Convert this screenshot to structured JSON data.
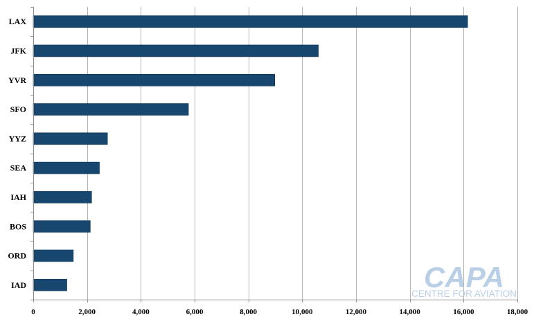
{
  "chart_data": {
    "type": "bar",
    "orientation": "horizontal",
    "title": "",
    "xlabel": "",
    "ylabel": "",
    "categories": [
      "LAX",
      "JFK",
      "YVR",
      "SFO",
      "YYZ",
      "SEA",
      "IAH",
      "BOS",
      "ORD",
      "IAD"
    ],
    "values": [
      16150,
      10600,
      8980,
      5770,
      2760,
      2460,
      2170,
      2120,
      1490,
      1250
    ],
    "xlim": [
      0,
      18000
    ],
    "x_ticks": [
      0,
      2000,
      4000,
      6000,
      8000,
      10000,
      12000,
      14000,
      16000,
      18000
    ],
    "x_tick_labels": [
      "0",
      "2,000",
      "4,000",
      "6,000",
      "8,000",
      "10,000",
      "12,000",
      "14,000",
      "16,000",
      "18,000"
    ],
    "grid": "vertical",
    "legend": "none",
    "bar_color": "#17466f",
    "grid_color": "#b3b3b3",
    "axis_color": "#8c8c8c"
  },
  "watermark": {
    "main": "CAPA",
    "sub": "CENTRE FOR AVIATION",
    "color": "#b9cfe6"
  }
}
